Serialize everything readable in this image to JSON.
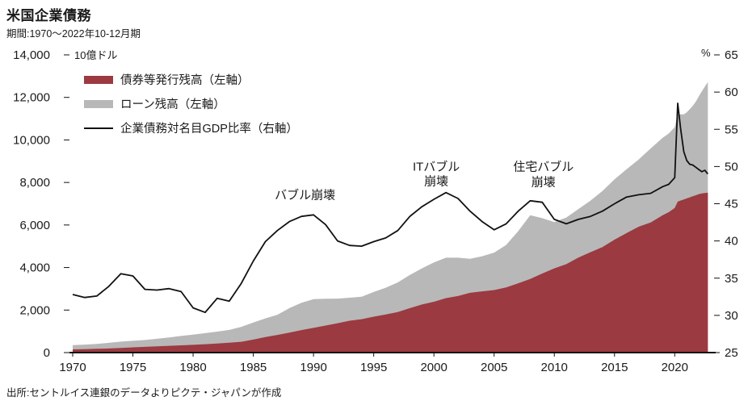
{
  "header": {
    "title": "米国企業債務",
    "subtitle": "期間:1970〜2022年10-12月期"
  },
  "footer": {
    "source": "出所:セントルイス連銀のデータよりピクテ・ジャパンが作成"
  },
  "chart_data": {
    "type": "stacked-area+line",
    "title": "米国企業債務",
    "y_left_unit": "10億ドル",
    "y_right_unit": "%",
    "x_range": [
      1970,
      2023
    ],
    "y_left_range": [
      0,
      14000
    ],
    "y_right_range": [
      25,
      65
    ],
    "grid": false,
    "legend_position": "top-left-inside",
    "x_ticks": [
      [
        1970,
        "1970"
      ],
      [
        1975,
        "1975"
      ],
      [
        1980,
        "1980"
      ],
      [
        1985,
        "1985"
      ],
      [
        1990,
        "1990"
      ],
      [
        1995,
        "1995"
      ],
      [
        2000,
        "2000"
      ],
      [
        2005,
        "2005"
      ],
      [
        2010,
        "2010"
      ],
      [
        2015,
        "2015"
      ],
      [
        2020,
        "2020"
      ]
    ],
    "y_left_ticks": [
      [
        0,
        "0"
      ],
      [
        2000,
        "2,000"
      ],
      [
        4000,
        "4,000"
      ],
      [
        6000,
        "6,000"
      ],
      [
        8000,
        "8,000"
      ],
      [
        10000,
        "10,000"
      ],
      [
        12000,
        "12,000"
      ],
      [
        14000,
        "14,000"
      ]
    ],
    "y_right_ticks": [
      [
        25,
        "25"
      ],
      [
        30,
        "30"
      ],
      [
        35,
        "35"
      ],
      [
        40,
        "40"
      ],
      [
        45,
        "45"
      ],
      [
        50,
        "50"
      ],
      [
        55,
        "55"
      ],
      [
        60,
        "60"
      ],
      [
        65,
        "65"
      ]
    ],
    "x": [
      1970,
      1971,
      1972,
      1973,
      1974,
      1975,
      1976,
      1977,
      1978,
      1979,
      1980,
      1981,
      1982,
      1983,
      1984,
      1985,
      1986,
      1987,
      1988,
      1989,
      1990,
      1991,
      1992,
      1993,
      1994,
      1995,
      1996,
      1997,
      1998,
      1999,
      2000,
      2001,
      2002,
      2003,
      2004,
      2005,
      2006,
      2007,
      2008,
      2009,
      2010,
      2011,
      2012,
      2013,
      2014,
      2015,
      2016,
      2017,
      2018,
      2019,
      2019.5,
      2020,
      2020.25,
      2020.5,
      2020.75,
      2021,
      2021.25,
      2021.5,
      2021.75,
      2022,
      2022.25,
      2022.5,
      2022.75
    ],
    "stack_series": [
      {
        "label": "債券等発行残高（左軸）",
        "axis": "left",
        "color": "#9b3a40",
        "values": [
          150,
          165,
          180,
          195,
          215,
          245,
          270,
          295,
          320,
          340,
          365,
          395,
          430,
          465,
          510,
          610,
          730,
          830,
          940,
          1060,
          1160,
          1270,
          1380,
          1500,
          1570,
          1690,
          1790,
          1910,
          2090,
          2260,
          2390,
          2560,
          2660,
          2810,
          2880,
          2940,
          3060,
          3260,
          3460,
          3720,
          3960,
          4160,
          4470,
          4720,
          4960,
          5310,
          5620,
          5920,
          6120,
          6460,
          6600,
          6800,
          7100,
          7150,
          7200,
          7250,
          7300,
          7350,
          7400,
          7450,
          7480,
          7500,
          7520
        ]
      },
      {
        "label": "ローン残高（左軸）",
        "axis": "left",
        "color": "#b8b8b8",
        "values": [
          200,
          210,
          230,
          265,
          300,
          310,
          320,
          355,
          395,
          440,
          480,
          520,
          555,
          600,
          700,
          800,
          880,
          950,
          1150,
          1280,
          1350,
          1260,
          1160,
          1080,
          1060,
          1160,
          1260,
          1390,
          1560,
          1700,
          1850,
          1900,
          1800,
          1600,
          1650,
          1760,
          2000,
          2450,
          3000,
          2600,
          2180,
          2190,
          2280,
          2420,
          2640,
          2840,
          3000,
          3160,
          3480,
          3640,
          3700,
          3800,
          4100,
          4050,
          4000,
          4050,
          4150,
          4250,
          4400,
          4600,
          4800,
          5000,
          5200
        ]
      }
    ],
    "line_series": {
      "label": "企業債務対名目GDP比率（右軸）",
      "axis": "right",
      "color": "#111111",
      "values": [
        32.8,
        32.4,
        32.6,
        33.9,
        35.6,
        35.3,
        33.5,
        33.4,
        33.6,
        33.2,
        31.0,
        30.4,
        32.3,
        31.9,
        34.3,
        37.3,
        39.9,
        41.4,
        42.6,
        43.3,
        43.5,
        42.2,
        40.0,
        39.4,
        39.3,
        39.9,
        40.4,
        41.4,
        43.3,
        44.6,
        45.6,
        46.5,
        45.7,
        44.0,
        42.6,
        41.5,
        42.3,
        44.0,
        45.4,
        45.2,
        42.9,
        42.3,
        42.9,
        43.3,
        44.0,
        45.0,
        45.9,
        46.2,
        46.4,
        47.3,
        47.6,
        48.5,
        58.5,
        55.0,
        52.0,
        50.8,
        50.3,
        50.2,
        49.9,
        49.6,
        49.3,
        49.5,
        49.0
      ]
    },
    "annotations": [
      {
        "text": "バブル崩壊",
        "x": 1989.3,
        "y": 46.0
      },
      {
        "text": "ITバブル\n崩壊",
        "x": 2000.2,
        "y": 48.9
      },
      {
        "text": "住宅バブル\n崩壊",
        "x": 2009.1,
        "y": 48.8
      }
    ],
    "colors": {
      "bond_area": "#9b3a40",
      "loan_area": "#b8b8b8",
      "gdp_line": "#111111",
      "axis": "#111111",
      "text": "#1a1a1a"
    }
  }
}
